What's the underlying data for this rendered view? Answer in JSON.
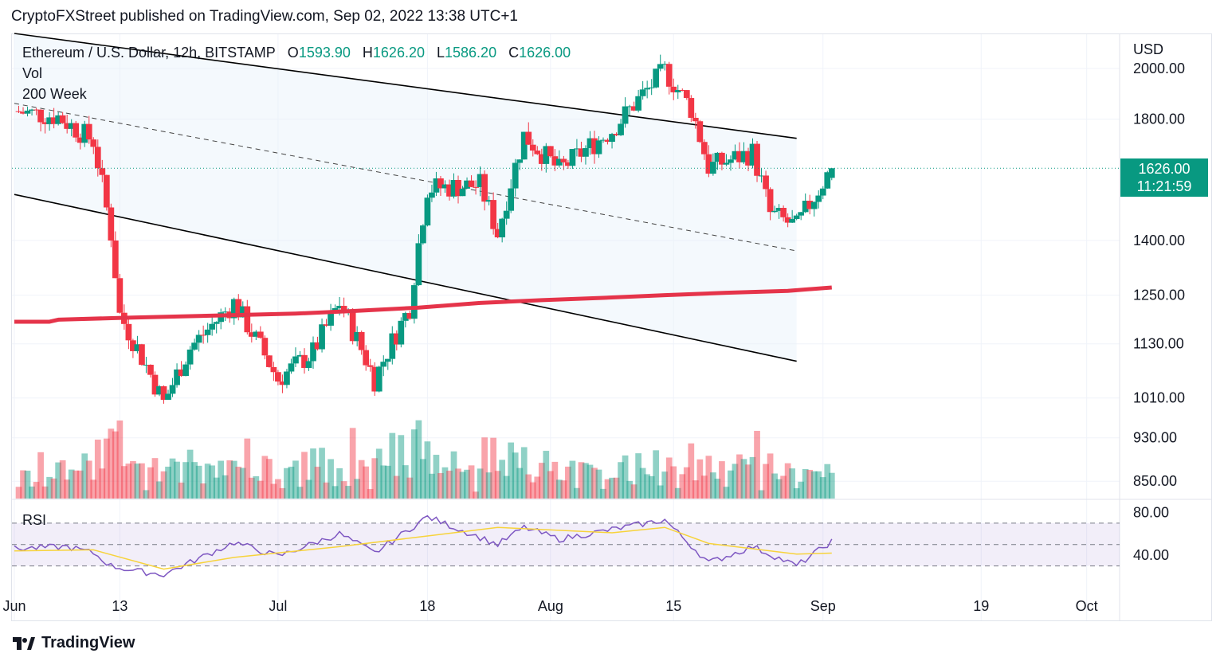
{
  "header": {
    "publisher": "CryptoFXStreet published on TradingView.com, Sep 02, 2022 13:38 UTC+1"
  },
  "legend": {
    "symbol": "Ethereum / U.S. Dollar, 12h, BITSTAMP",
    "o_label": "O",
    "o_value": "1593.90",
    "h_label": "H",
    "h_value": "1626.20",
    "l_label": "L",
    "l_value": "1586.20",
    "c_label": "C",
    "c_value": "1626.00",
    "vol": "Vol",
    "ma": "200 Week"
  },
  "price_axis": {
    "currency": "USD",
    "ticks": [
      "2000.00",
      "1800.00",
      "1400.00",
      "1250.00",
      "1130.00",
      "1010.00",
      "930.00",
      "850.00"
    ],
    "last_price": "1626.00",
    "countdown": "11:21:59"
  },
  "rsi_pane": {
    "label": "RSI",
    "ticks": [
      "80.00",
      "40.00"
    ]
  },
  "time_axis": {
    "ticks": [
      "Jun",
      "13",
      "Jul",
      "18",
      "Aug",
      "15",
      "Sep",
      "19",
      "Oct"
    ]
  },
  "footer": {
    "brand": "TradingView"
  },
  "colors": {
    "up": "#089981",
    "down": "#f23645",
    "ma": "#e5344a",
    "rsi": "#7e57c2",
    "rsi_ma": "#f7d33b",
    "channel_fill": "#e7f1fb"
  },
  "chart_data": {
    "type": "candlestick",
    "title": "Ethereum / U.S. Dollar, 12h, BITSTAMP",
    "x_range": [
      "2022-06-01",
      "2022-10-03"
    ],
    "y_scale": "log",
    "ylim": [
      820,
      2150
    ],
    "last": {
      "open": 1593.9,
      "high": 1626.2,
      "low": 1586.2,
      "close": 1626.0
    },
    "anchors": [
      {
        "date": "2022-06-01",
        "close": 1830
      },
      {
        "date": "2022-06-06",
        "close": 1810
      },
      {
        "date": "2022-06-10",
        "close": 1720
      },
      {
        "date": "2022-06-12",
        "close": 1420
      },
      {
        "date": "2022-06-13",
        "close": 1200
      },
      {
        "date": "2022-06-18",
        "close": 1000
      },
      {
        "date": "2022-06-21",
        "close": 1120
      },
      {
        "date": "2022-06-26",
        "close": 1230
      },
      {
        "date": "2022-07-01",
        "close": 1050
      },
      {
        "date": "2022-07-05",
        "close": 1110
      },
      {
        "date": "2022-07-08",
        "close": 1230
      },
      {
        "date": "2022-07-12",
        "close": 1050
      },
      {
        "date": "2022-07-16",
        "close": 1220
      },
      {
        "date": "2022-07-18",
        "close": 1560
      },
      {
        "date": "2022-07-24",
        "close": 1570
      },
      {
        "date": "2022-07-26",
        "close": 1420
      },
      {
        "date": "2022-07-29",
        "close": 1740
      },
      {
        "date": "2022-08-02",
        "close": 1620
      },
      {
        "date": "2022-08-08",
        "close": 1760
      },
      {
        "date": "2022-08-14",
        "close": 1990
      },
      {
        "date": "2022-08-17",
        "close": 1840
      },
      {
        "date": "2022-08-19",
        "close": 1630
      },
      {
        "date": "2022-08-24",
        "close": 1680
      },
      {
        "date": "2022-08-26",
        "close": 1480
      },
      {
        "date": "2022-08-29",
        "close": 1440
      },
      {
        "date": "2022-09-01",
        "close": 1580
      },
      {
        "date": "2022-09-02",
        "close": 1626
      }
    ],
    "ma_200_week": [
      {
        "date": "2022-06-01",
        "value": 1183
      },
      {
        "date": "2022-06-05",
        "value": 1183
      },
      {
        "date": "2022-06-06",
        "value": 1188
      },
      {
        "date": "2022-06-14",
        "value": 1193
      },
      {
        "date": "2022-07-03",
        "value": 1203
      },
      {
        "date": "2022-07-10",
        "value": 1210
      },
      {
        "date": "2022-07-17",
        "value": 1218
      },
      {
        "date": "2022-07-24",
        "value": 1230
      },
      {
        "date": "2022-07-31",
        "value": 1237
      },
      {
        "date": "2022-08-07",
        "value": 1243
      },
      {
        "date": "2022-08-14",
        "value": 1250
      },
      {
        "date": "2022-08-21",
        "value": 1256
      },
      {
        "date": "2022-08-28",
        "value": 1261
      },
      {
        "date": "2022-09-02",
        "value": 1270
      }
    ],
    "channel": {
      "upper": [
        {
          "date": "2022-06-01",
          "price": 2150
        },
        {
          "date": "2022-08-29",
          "price": 1730
        }
      ],
      "middle": [
        {
          "date": "2022-06-01",
          "price": 1860
        },
        {
          "date": "2022-08-29",
          "price": 1370
        }
      ],
      "lower": [
        {
          "date": "2022-06-01",
          "price": 1540
        },
        {
          "date": "2022-08-29",
          "price": 1090
        }
      ]
    },
    "rsi": {
      "ylim": [
        20,
        90
      ],
      "bands": [
        30,
        50,
        70
      ],
      "points": [
        {
          "date": "2022-06-01",
          "value": 46
        },
        {
          "date": "2022-06-07",
          "value": 48
        },
        {
          "date": "2022-06-10",
          "value": 42
        },
        {
          "date": "2022-06-12",
          "value": 30
        },
        {
          "date": "2022-06-15",
          "value": 25
        },
        {
          "date": "2022-06-18",
          "value": 22
        },
        {
          "date": "2022-06-26",
          "value": 52
        },
        {
          "date": "2022-07-01",
          "value": 39
        },
        {
          "date": "2022-07-08",
          "value": 60
        },
        {
          "date": "2022-07-12",
          "value": 42
        },
        {
          "date": "2022-07-18",
          "value": 76
        },
        {
          "date": "2022-07-26",
          "value": 50
        },
        {
          "date": "2022-07-29",
          "value": 66
        },
        {
          "date": "2022-08-02",
          "value": 55
        },
        {
          "date": "2022-08-14",
          "value": 73
        },
        {
          "date": "2022-08-19",
          "value": 33
        },
        {
          "date": "2022-08-24",
          "value": 48
        },
        {
          "date": "2022-08-29",
          "value": 30
        },
        {
          "date": "2022-09-02",
          "value": 53
        }
      ],
      "ma_points": [
        {
          "date": "2022-06-01",
          "value": 44
        },
        {
          "date": "2022-06-10",
          "value": 45
        },
        {
          "date": "2022-06-18",
          "value": 27
        },
        {
          "date": "2022-06-26",
          "value": 38
        },
        {
          "date": "2022-07-08",
          "value": 48
        },
        {
          "date": "2022-07-18",
          "value": 58
        },
        {
          "date": "2022-07-26",
          "value": 66
        },
        {
          "date": "2022-08-08",
          "value": 61
        },
        {
          "date": "2022-08-14",
          "value": 66
        },
        {
          "date": "2022-08-19",
          "value": 51
        },
        {
          "date": "2022-08-29",
          "value": 41
        },
        {
          "date": "2022-09-02",
          "value": 42
        }
      ]
    }
  }
}
